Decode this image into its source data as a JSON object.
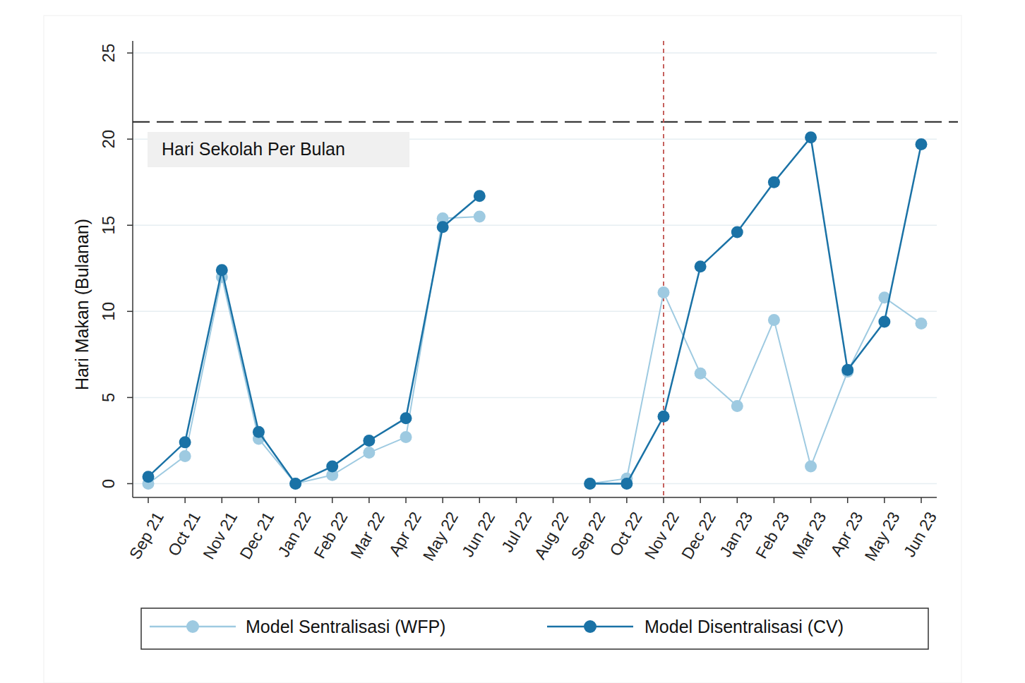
{
  "chart_data": {
    "type": "line",
    "y_label": "Hari Makan (Bulanan)",
    "categories": [
      "Sep 21",
      "Oct 21",
      "Nov 21",
      "Dec 21",
      "Jan 22",
      "Feb 22",
      "Mar 22",
      "Apr 22",
      "May 22",
      "Jun 22",
      "Jul 22",
      "Aug 22",
      "Sep 22",
      "Oct 22",
      "Nov 22",
      "Dec 22",
      "Jan 23",
      "Feb 23",
      "Mar 23",
      "Apr 23",
      "May 23",
      "Jun 23"
    ],
    "series": [
      {
        "name": "Model Sentralisasi (WFP)",
        "color": "#9ecae1",
        "marker": "circle",
        "values": [
          0,
          1.6,
          12,
          2.6,
          0,
          0.5,
          1.8,
          2.7,
          15.4,
          15.5,
          null,
          null,
          0,
          0.3,
          11.1,
          6.4,
          4.5,
          9.5,
          1.0,
          6.5,
          10.8,
          9.3
        ]
      },
      {
        "name": "Model Disentralisasi (CV)",
        "color": "#1a72a6",
        "marker": "circle",
        "values": [
          0.4,
          2.4,
          12.4,
          3.0,
          0,
          1.0,
          2.5,
          3.8,
          14.9,
          16.7,
          null,
          null,
          0,
          0,
          3.9,
          12.6,
          14.6,
          17.5,
          20.1,
          6.6,
          9.4,
          19.7
        ]
      }
    ],
    "ylim": [
      -0.8,
      25.7
    ],
    "yticks": [
      0,
      5,
      10,
      15,
      20,
      25
    ],
    "grid": true,
    "legend": "bottom",
    "hline": {
      "value": 21,
      "label": "Hari Sekolah Per Bulan"
    },
    "vline": {
      "x": "Nov 22"
    }
  }
}
